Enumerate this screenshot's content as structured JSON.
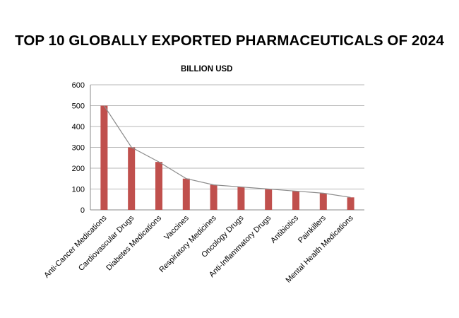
{
  "chart_data": {
    "type": "bar",
    "title": "TOP 10 GLOBALLY EXPORTED PHARMACEUTICALS OF 2024",
    "subtitle": "BILLION USD",
    "xlabel": "",
    "ylabel": "",
    "ylim": [
      0,
      600
    ],
    "yticks": [
      0,
      100,
      200,
      300,
      400,
      500,
      600
    ],
    "grid": true,
    "legend": "none",
    "categories": [
      "Anti-Cancer Medications",
      "Cardiovascular Drugs",
      "Diabetes Medications",
      "Vaccines",
      "Respiratory Medicines",
      "Oncology Drugs",
      "Anti-Inflammatory Drugs",
      "Antibiotics",
      "Painkillers",
      "Mental Health Medications"
    ],
    "values": [
      500,
      300,
      230,
      150,
      120,
      110,
      100,
      90,
      80,
      60
    ],
    "trend_line": true,
    "colors": {
      "bar": "#c0504d",
      "trend_line": "#8c8c8c",
      "grid": "#b7b7b7"
    }
  }
}
